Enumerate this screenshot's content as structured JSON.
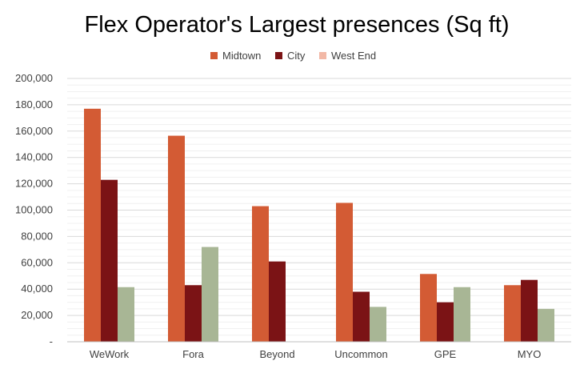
{
  "chart_data": {
    "type": "bar",
    "title": "Flex Operator's Largest presences (Sq ft)",
    "xlabel": "",
    "ylabel": "",
    "categories": [
      "WeWork",
      "Fora",
      "Beyond",
      "Uncommon",
      "GPE",
      "MYO"
    ],
    "series": [
      {
        "name": "Midtown",
        "color": "#D35B34",
        "values": [
          177000,
          156500,
          103000,
          105500,
          51500,
          43000
        ]
      },
      {
        "name": "City",
        "color": "#7B1315",
        "values": [
          123000,
          43000,
          61000,
          38000,
          30000,
          47000
        ]
      },
      {
        "name": "West End",
        "color": "#A8B695",
        "legend_color": "#F2B8A6",
        "values": [
          41500,
          72000,
          0,
          26500,
          41500,
          25000
        ]
      }
    ],
    "ylim": [
      0,
      200000
    ],
    "yticks": [
      "-",
      "20,000",
      "40,000",
      "60,000",
      "80,000",
      "100,000",
      "120,000",
      "140,000",
      "160,000",
      "180,000",
      "200,000"
    ],
    "grid": true,
    "legend_position": "top-center"
  }
}
